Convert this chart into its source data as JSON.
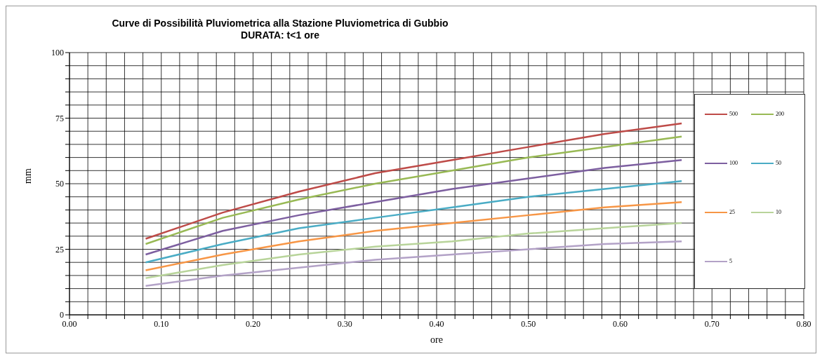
{
  "chart_data": {
    "type": "line",
    "title": "Curve di Possibilità Pluviometrica alla Stazione Pluviometrica di Gubbio\nDURATA: t<1 ore",
    "xlabel": "ore",
    "ylabel": "mm",
    "x": [
      0.083,
      0.167,
      0.25,
      0.333,
      0.417,
      0.5,
      0.583,
      0.667
    ],
    "series": [
      {
        "name": "500",
        "color": "#be4b48",
        "values": [
          29,
          39,
          47,
          54,
          59,
          64,
          69,
          73
        ]
      },
      {
        "name": "200",
        "color": "#98b954",
        "values": [
          27,
          37,
          44,
          50,
          55,
          60,
          64,
          68
        ]
      },
      {
        "name": "100",
        "color": "#7d5fa0",
        "values": [
          23,
          32,
          38,
          43,
          48,
          52,
          56,
          59
        ]
      },
      {
        "name": "50",
        "color": "#4aacc5",
        "values": [
          20,
          27,
          33,
          37,
          41,
          45,
          48,
          51
        ]
      },
      {
        "name": "25",
        "color": "#f79646",
        "values": [
          17,
          23,
          28,
          32,
          35,
          38,
          41,
          43
        ]
      },
      {
        "name": "10",
        "color": "#b8d49a",
        "values": [
          14,
          19,
          23,
          26,
          28,
          31,
          33,
          35
        ]
      },
      {
        "name": "5",
        "color": "#b3a2c7",
        "values": [
          11,
          15,
          18,
          21,
          23,
          25,
          27,
          28
        ]
      }
    ],
    "xlim": [
      0,
      0.8
    ],
    "xticks": [
      {
        "value": 0,
        "label": "0.00"
      },
      {
        "value": 0.02,
        "label": null
      },
      {
        "value": 0.04,
        "label": null
      },
      {
        "value": 0.06,
        "label": null
      },
      {
        "value": 0.08,
        "label": null
      },
      {
        "value": 0.1,
        "label": "0.10"
      },
      {
        "value": 0.12,
        "label": null
      },
      {
        "value": 0.14,
        "label": null
      },
      {
        "value": 0.16,
        "label": null
      },
      {
        "value": 0.18,
        "label": null
      },
      {
        "value": 0.2,
        "label": "0.20"
      },
      {
        "value": 0.22,
        "label": null
      },
      {
        "value": 0.24,
        "label": null
      },
      {
        "value": 0.26,
        "label": null
      },
      {
        "value": 0.28,
        "label": null
      },
      {
        "value": 0.3,
        "label": "0.30"
      },
      {
        "value": 0.32,
        "label": null
      },
      {
        "value": 0.34,
        "label": null
      },
      {
        "value": 0.36,
        "label": null
      },
      {
        "value": 0.38,
        "label": null
      },
      {
        "value": 0.4,
        "label": "0.40"
      },
      {
        "value": 0.42,
        "label": null
      },
      {
        "value": 0.44,
        "label": null
      },
      {
        "value": 0.46,
        "label": null
      },
      {
        "value": 0.48,
        "label": null
      },
      {
        "value": 0.5,
        "label": "0.50"
      },
      {
        "value": 0.52,
        "label": null
      },
      {
        "value": 0.54,
        "label": null
      },
      {
        "value": 0.56,
        "label": null
      },
      {
        "value": 0.58,
        "label": null
      },
      {
        "value": 0.6,
        "label": "0.60"
      },
      {
        "value": 0.62,
        "label": null
      },
      {
        "value": 0.64,
        "label": null
      },
      {
        "value": 0.66,
        "label": null
      },
      {
        "value": 0.68,
        "label": null
      },
      {
        "value": 0.7,
        "label": "0.70"
      },
      {
        "value": 0.72,
        "label": null
      },
      {
        "value": 0.74,
        "label": null
      },
      {
        "value": 0.76,
        "label": null
      },
      {
        "value": 0.78,
        "label": null
      },
      {
        "value": 0.8,
        "label": "0.80"
      }
    ],
    "ylim": [
      0,
      100
    ],
    "yticks": [
      0,
      {
        "value": 5,
        "label": null
      },
      {
        "value": 10,
        "label": null
      },
      {
        "value": 15,
        "label": null
      },
      {
        "value": 20,
        "label": null
      },
      25,
      {
        "value": 30,
        "label": null
      },
      {
        "value": 35,
        "label": null
      },
      {
        "value": 40,
        "label": null
      },
      {
        "value": 45,
        "label": null
      },
      50,
      {
        "value": 55,
        "label": null
      },
      {
        "value": 60,
        "label": null
      },
      {
        "value": 65,
        "label": null
      },
      {
        "value": 70,
        "label": null
      },
      75,
      {
        "value": 80,
        "label": null
      },
      {
        "value": 85,
        "label": null
      },
      {
        "value": 90,
        "label": null
      },
      {
        "value": 95,
        "label": null
      },
      100
    ],
    "grid": true,
    "legend": "right"
  }
}
